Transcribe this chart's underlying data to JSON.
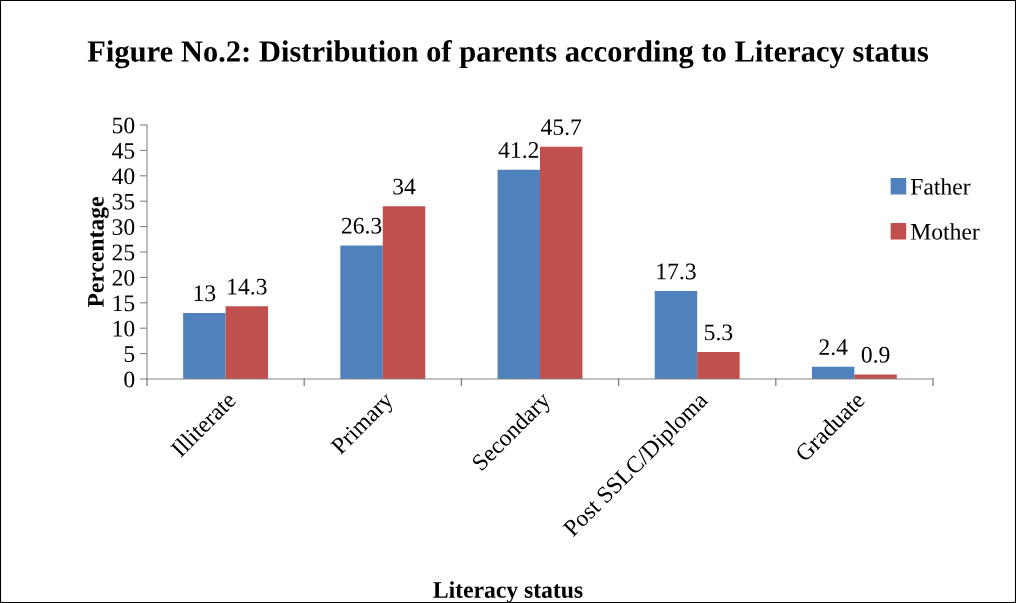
{
  "chart_data": {
    "type": "bar",
    "title": "Figure No.2: Distribution of parents according to Literacy status",
    "xlabel": "Literacy status",
    "ylabel": "Percentage",
    "categories": [
      "Illiterate",
      "Primary",
      "Secondary",
      "Post SSLC/Diploma",
      "Graduate"
    ],
    "series": [
      {
        "name": "Father",
        "color": "#4f81bd",
        "values": [
          13,
          26.3,
          41.2,
          17.3,
          2.4
        ]
      },
      {
        "name": "Mother",
        "color": "#c0504d",
        "values": [
          14.3,
          34,
          45.7,
          5.3,
          0.9
        ]
      }
    ],
    "ylim": [
      0,
      50
    ],
    "yticks": [
      0,
      5,
      10,
      15,
      20,
      25,
      30,
      35,
      40,
      45,
      50
    ],
    "data_labels": true,
    "legend": "right",
    "grid": false
  }
}
